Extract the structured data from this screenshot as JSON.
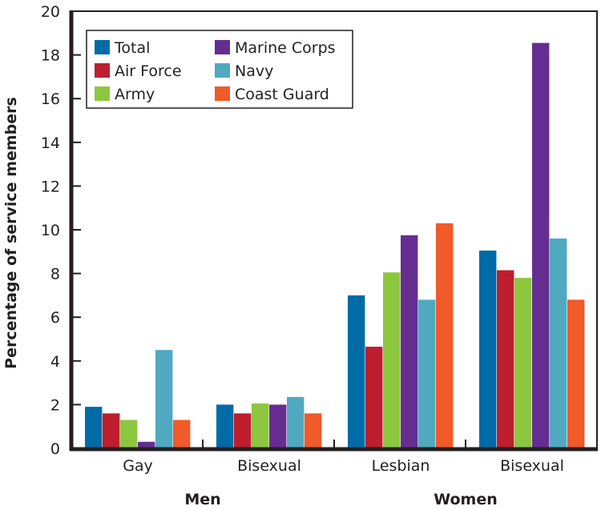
{
  "chart_data": {
    "type": "bar",
    "title": "",
    "xlabel": "",
    "ylabel": "Percentage of service members",
    "ylim": [
      0,
      20
    ],
    "yticks": [
      0,
      2,
      4,
      6,
      8,
      10,
      12,
      14,
      16,
      18,
      20
    ],
    "grid": false,
    "legend_position": "top-left",
    "categories": [
      "Gay",
      "Bisexual",
      "Lesbian",
      "Bisexual"
    ],
    "groups": [
      {
        "label": "Men",
        "categories": [
          0,
          1
        ]
      },
      {
        "label": "Women",
        "categories": [
          2,
          3
        ]
      }
    ],
    "series": [
      {
        "name": "Total",
        "color": "#006ba6",
        "values": [
          1.9,
          2.0,
          7.0,
          9.05
        ]
      },
      {
        "name": "Air Force",
        "color": "#be1e2d",
        "values": [
          1.6,
          1.6,
          4.65,
          8.15
        ]
      },
      {
        "name": "Army",
        "color": "#8dc63f",
        "values": [
          1.3,
          2.05,
          8.05,
          7.8
        ]
      },
      {
        "name": "Marine Corps",
        "color": "#662d91",
        "values": [
          0.3,
          2.0,
          9.75,
          18.55
        ]
      },
      {
        "name": "Navy",
        "color": "#50a9c1",
        "values": [
          4.5,
          2.35,
          6.8,
          9.6
        ]
      },
      {
        "name": "Coast Guard",
        "color": "#f15a29",
        "values": [
          1.3,
          1.6,
          10.3,
          6.8
        ]
      }
    ]
  }
}
